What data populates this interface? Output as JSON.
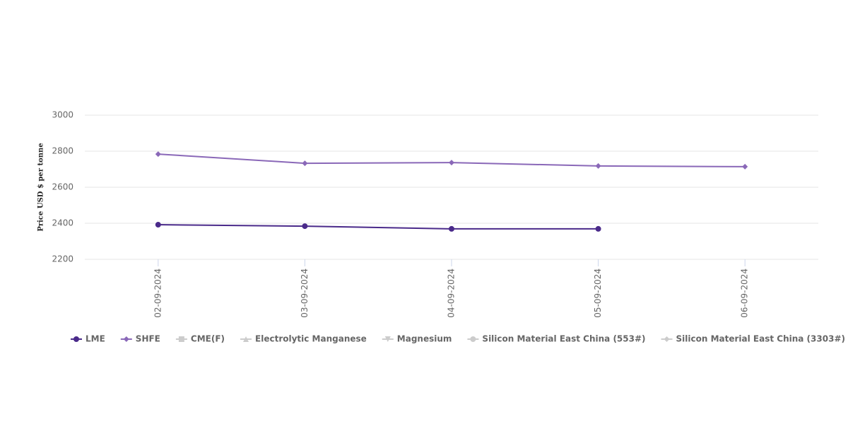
{
  "chart_data": {
    "type": "line",
    "y_axis_label": "Price USD $ per tonne",
    "categories": [
      "02-09-2024",
      "03-09-2024",
      "04-09-2024",
      "05-09-2024",
      "06-09-2024"
    ],
    "series": [
      {
        "name": "LME",
        "color": "#4a2a8a",
        "marker": "circle",
        "visible": true,
        "values": [
          2392,
          2384,
          2369,
          2369,
          null
        ]
      },
      {
        "name": "SHFE",
        "color": "#8a68b8",
        "marker": "diamond",
        "visible": true,
        "values": [
          2784,
          2733,
          2737,
          2718,
          2714
        ]
      },
      {
        "name": "CME(F)",
        "color": "#cccccc",
        "marker": "square",
        "visible": false,
        "values": [
          null,
          null,
          null,
          null,
          null
        ]
      },
      {
        "name": "Electrolytic Manganese",
        "color": "#cccccc",
        "marker": "triangle",
        "visible": false,
        "values": [
          null,
          null,
          null,
          null,
          null
        ]
      },
      {
        "name": "Magnesium",
        "color": "#cccccc",
        "marker": "triangle-down",
        "visible": false,
        "values": [
          null,
          null,
          null,
          null,
          null
        ]
      },
      {
        "name": "Silicon Material East China (553#)",
        "color": "#cccccc",
        "marker": "circle",
        "visible": false,
        "values": [
          null,
          null,
          null,
          null,
          null
        ]
      },
      {
        "name": "Silicon Material East China (3303#)",
        "color": "#cccccc",
        "marker": "diamond",
        "visible": false,
        "values": [
          null,
          null,
          null,
          null,
          null
        ]
      }
    ],
    "ylim": [
      2200,
      3000
    ],
    "yticks": [
      2200,
      2400,
      2600,
      2800,
      3000
    ],
    "grid": true
  }
}
